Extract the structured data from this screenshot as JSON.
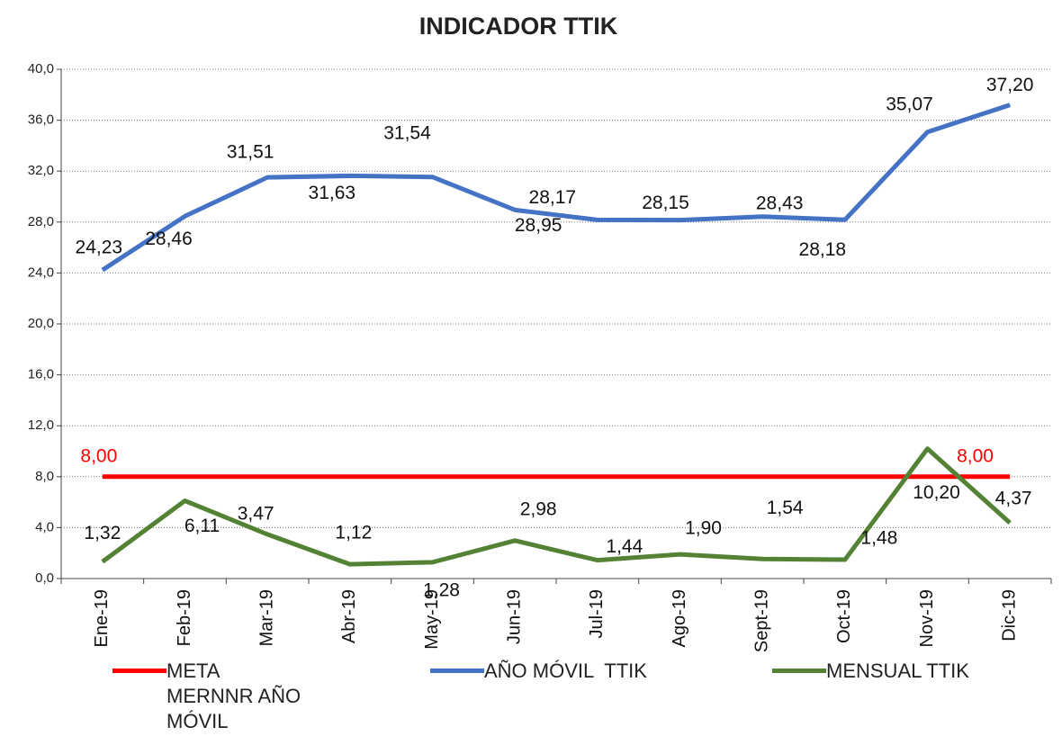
{
  "chart_data": {
    "type": "line",
    "title": "INDICADOR TTIK",
    "categories": [
      "Ene-19",
      "Feb-19",
      "Mar-19",
      "Abr-19",
      "May-19",
      "Jun-19",
      "Jul-19",
      "Ago-19",
      "Sept-19",
      "Oct-19",
      "Nov-19",
      "Dic-19"
    ],
    "series": [
      {
        "name": "META MERNNR AÑO MÓVIL",
        "color": "#ff0000",
        "values": [
          8,
          8,
          8,
          8,
          8,
          8,
          8,
          8,
          8,
          8,
          8,
          8
        ],
        "value_labels": [
          "8,00",
          null,
          null,
          null,
          null,
          null,
          null,
          null,
          null,
          null,
          "8,00",
          null
        ]
      },
      {
        "name": "AÑO MÓVIL  TTIK",
        "color": "#4472c4",
        "values": [
          24.23,
          28.46,
          31.51,
          31.63,
          31.54,
          28.95,
          28.17,
          28.15,
          28.43,
          28.18,
          35.07,
          37.2
        ],
        "value_labels": [
          "24,23",
          "28,46",
          "31,51",
          "31,63",
          "31,54",
          "28,95",
          "28,17",
          "28,15",
          "28,43",
          "28,18",
          "35,07",
          "37,20"
        ]
      },
      {
        "name": "MENSUAL TTIK",
        "color": "#548235",
        "values": [
          1.32,
          6.11,
          3.47,
          1.12,
          1.28,
          2.98,
          1.44,
          1.9,
          1.54,
          1.48,
          10.2,
          4.37
        ],
        "value_labels": [
          "1,32",
          "6,11",
          "3,47",
          "1,12",
          "1,28",
          "2,98",
          "1,44",
          "1,90",
          "1,54",
          "1,48",
          "10,20",
          "4,37"
        ]
      }
    ],
    "ylim": [
      0,
      40
    ],
    "yticks": [
      {
        "value": 0,
        "label": "0,0"
      },
      {
        "value": 4,
        "label": "4,0"
      },
      {
        "value": 8,
        "label": "8,0"
      },
      {
        "value": 12,
        "label": "12,0"
      },
      {
        "value": 16,
        "label": "16,0"
      },
      {
        "value": 20,
        "label": "20,0"
      },
      {
        "value": 24,
        "label": "24,0"
      },
      {
        "value": 28,
        "label": "28,0"
      },
      {
        "value": 32,
        "label": "32,0"
      },
      {
        "value": 36,
        "label": "36,0"
      },
      {
        "value": 40,
        "label": "40,0"
      }
    ],
    "grid": true
  }
}
